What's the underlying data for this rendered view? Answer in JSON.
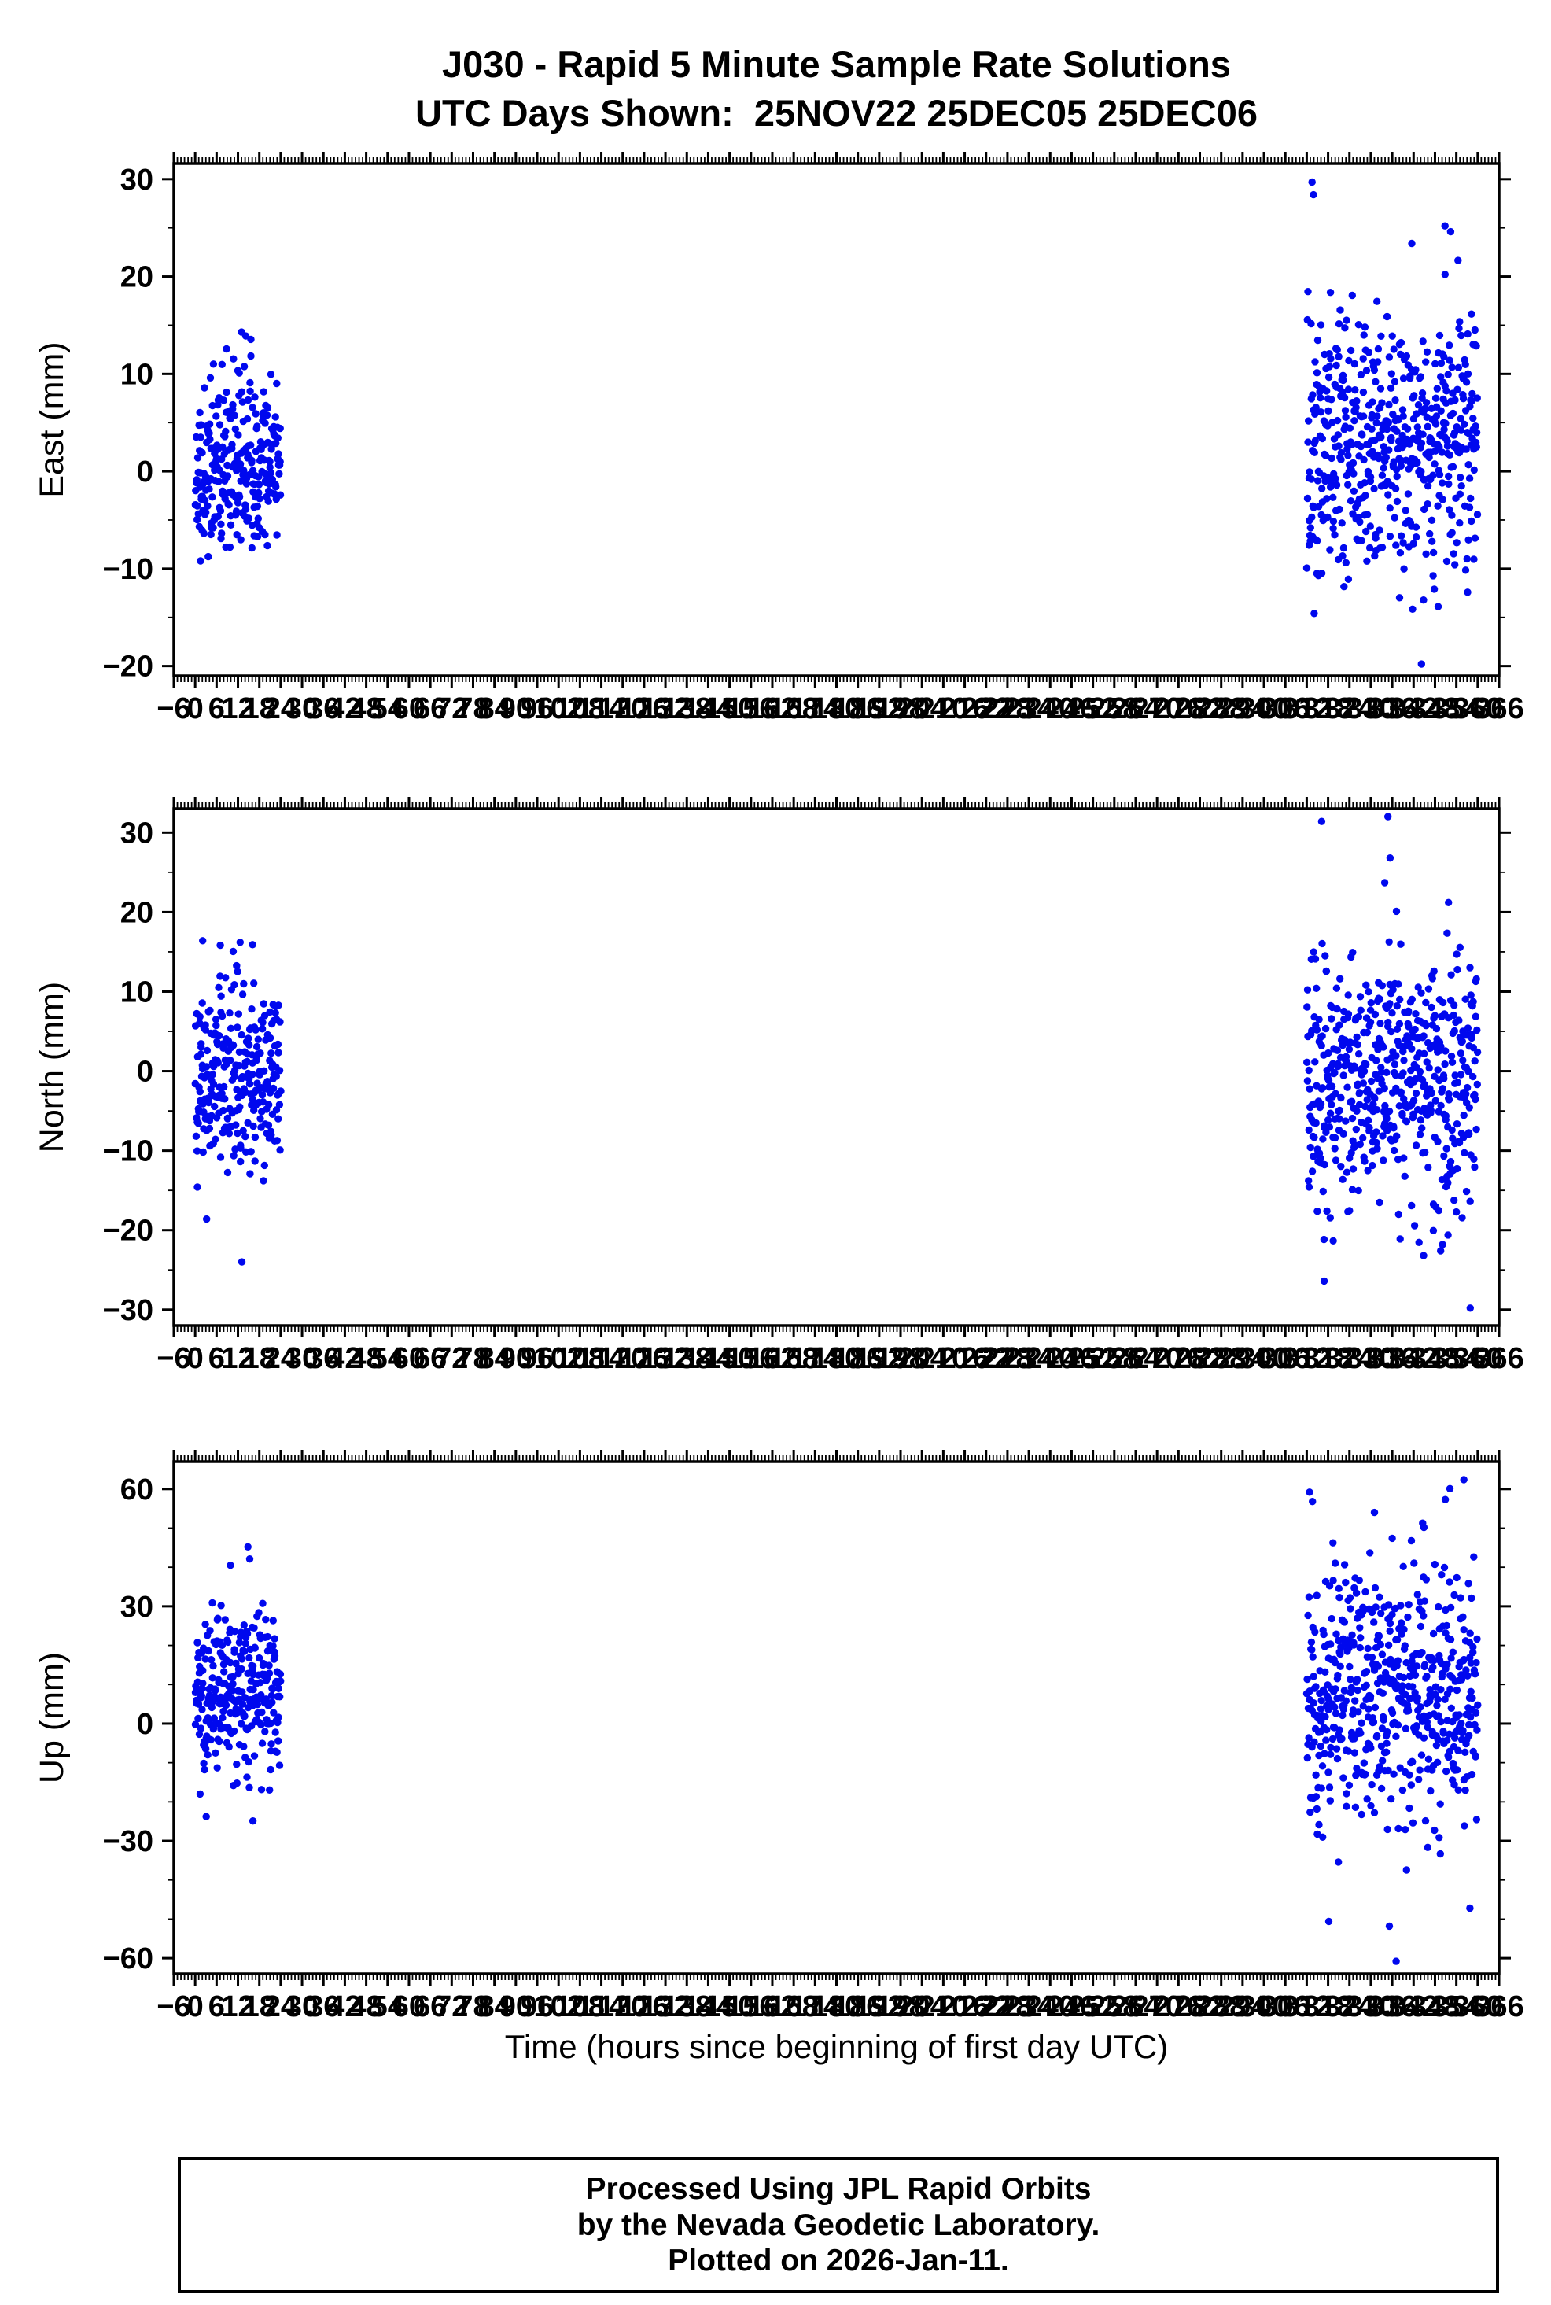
{
  "title": {
    "line1": "J030 - Rapid 5 Minute Sample Rate Solutions",
    "line2": "UTC Days Shown:  25NOV22 25DEC05 25DEC06"
  },
  "xlabel": "Time (hours since beginning of first day UTC)",
  "footer": {
    "line1": "Processed Using JPL Rapid Orbits",
    "line2": "by the Nevada Geodetic Laboratory.",
    "line3": "Plotted on 2026-Jan-11."
  },
  "marker_color": "#0008EE",
  "axis_color": "#000000",
  "utc_days": [
    "25NOV22",
    "25DEC05",
    "25DEC06"
  ],
  "chart_data": [
    {
      "type": "scatter",
      "name": "east",
      "ylabel": "East (mm)",
      "xlim": [
        -6,
        366
      ],
      "ylim": [
        -21,
        31.6
      ],
      "yticks": [
        -20,
        -10,
        0,
        10,
        20,
        30
      ],
      "y_minor_step": 5,
      "xtick_major_step": 6,
      "xtick_minor_step": 1,
      "grid": false,
      "legend": "none",
      "clusters": [
        {
          "label": "25NOV22",
          "x_start": 0,
          "x_end": 24,
          "n": 270,
          "y_mean": 0.5,
          "y_std": 4.5,
          "y_min": -9.5,
          "y_max": 14.5,
          "seed": 11,
          "outliers": [
            [
              1.5,
              -9.2
            ],
            [
              13.0,
              14.3
            ],
            [
              14.2,
              13.9
            ]
          ]
        },
        {
          "label": "25DEC05-25DEC06",
          "x_start": 312,
          "x_end": 360,
          "n": 540,
          "y_mean": 3,
          "y_std": 6.5,
          "y_min": -15,
          "y_max": 22,
          "seed": 12,
          "outliers": [
            [
              313.5,
              29.7
            ],
            [
              313.9,
              28.4
            ],
            [
              350.8,
              25.2
            ],
            [
              352.4,
              24.6
            ],
            [
              344.2,
              -19.8
            ],
            [
              314.1,
              -14.6
            ],
            [
              348.9,
              -13.9
            ],
            [
              341.5,
              23.4
            ]
          ]
        }
      ]
    },
    {
      "type": "scatter",
      "name": "north",
      "ylabel": "North (mm)",
      "xlim": [
        -6,
        366
      ],
      "ylim": [
        -32,
        33
      ],
      "yticks": [
        -30,
        -20,
        -10,
        0,
        10,
        20,
        30
      ],
      "y_minor_step": 5,
      "xtick_major_step": 6,
      "xtick_minor_step": 1,
      "grid": false,
      "legend": "none",
      "clusters": [
        {
          "label": "25NOV22",
          "x_start": 0,
          "x_end": 24,
          "n": 270,
          "y_mean": 0,
          "y_std": 6,
          "y_min": -19,
          "y_max": 16.3,
          "seed": 21,
          "outliers": [
            [
              3.2,
              -18.6
            ],
            [
              13.1,
              -24.0
            ],
            [
              12.6,
              16.2
            ],
            [
              16.1,
              15.9
            ],
            [
              2.1,
              16.4
            ]
          ]
        },
        {
          "label": "25DEC05-25DEC06",
          "x_start": 312,
          "x_end": 360,
          "n": 540,
          "y_mean": -1,
          "y_std": 8,
          "y_min": -22,
          "y_max": 17.5,
          "seed": 22,
          "outliers": [
            [
              316.2,
              31.4
            ],
            [
              334.8,
              32.0
            ],
            [
              335.4,
              26.8
            ],
            [
              333.9,
              23.7
            ],
            [
              351.8,
              21.2
            ],
            [
              316.9,
              -26.4
            ],
            [
              344.8,
              -23.2
            ],
            [
              357.9,
              -29.8
            ],
            [
              349.6,
              -22.6
            ],
            [
              337.2,
              20.1
            ]
          ]
        }
      ]
    },
    {
      "type": "scatter",
      "name": "up",
      "ylabel": "Up (mm)",
      "xlim": [
        -6,
        366
      ],
      "ylim": [
        -64,
        67
      ],
      "yticks": [
        -60,
        -30,
        0,
        30,
        60
      ],
      "y_minor_step": 10,
      "xtick_major_step": 6,
      "xtick_minor_step": 1,
      "grid": false,
      "legend": "none",
      "clusters": [
        {
          "label": "25NOV22",
          "x_start": 0,
          "x_end": 24,
          "n": 270,
          "y_mean": 8,
          "y_std": 11,
          "y_min": -25,
          "y_max": 38,
          "seed": 31,
          "outliers": [
            [
              14.8,
              45.2
            ],
            [
              15.3,
              42.1
            ],
            [
              3.1,
              -23.8
            ],
            [
              16.2,
              -24.9
            ],
            [
              9.9,
              40.5
            ]
          ]
        },
        {
          "label": "25DEC05-25DEC06",
          "x_start": 312,
          "x_end": 360,
          "n": 540,
          "y_mean": 8,
          "y_std": 16,
          "y_min": -38,
          "y_max": 52,
          "seed": 32,
          "outliers": [
            [
              312.8,
              59.2
            ],
            [
              313.6,
              56.8
            ],
            [
              350.9,
              57.3
            ],
            [
              352.2,
              60.1
            ],
            [
              356.1,
              62.4
            ],
            [
              344.9,
              50.2
            ],
            [
              335.2,
              -51.8
            ],
            [
              337.1,
              -60.8
            ],
            [
              318.2,
              -50.6
            ],
            [
              357.8,
              -47.2
            ],
            [
              320.9,
              -35.4
            ],
            [
              331.0,
              54.0
            ]
          ]
        }
      ]
    }
  ]
}
